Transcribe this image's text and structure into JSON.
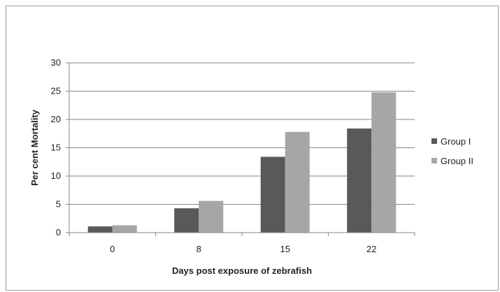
{
  "chart_data": {
    "type": "bar",
    "title": "",
    "xlabel": "Days post exposure of zebrafish",
    "ylabel": "Per cent Mortality",
    "categories": [
      "0",
      "8",
      "15",
      "22"
    ],
    "series": [
      {
        "name": "Group I",
        "values": [
          1.1,
          4.3,
          13.4,
          18.4
        ],
        "color": "#595959"
      },
      {
        "name": "Group II",
        "values": [
          1.3,
          5.6,
          17.8,
          24.8
        ],
        "color": "#a6a6a6"
      }
    ],
    "ylim": [
      0,
      30
    ],
    "yticks": [
      0,
      5,
      10,
      15,
      20,
      25,
      30
    ],
    "grid": true,
    "legend_position": "right"
  }
}
